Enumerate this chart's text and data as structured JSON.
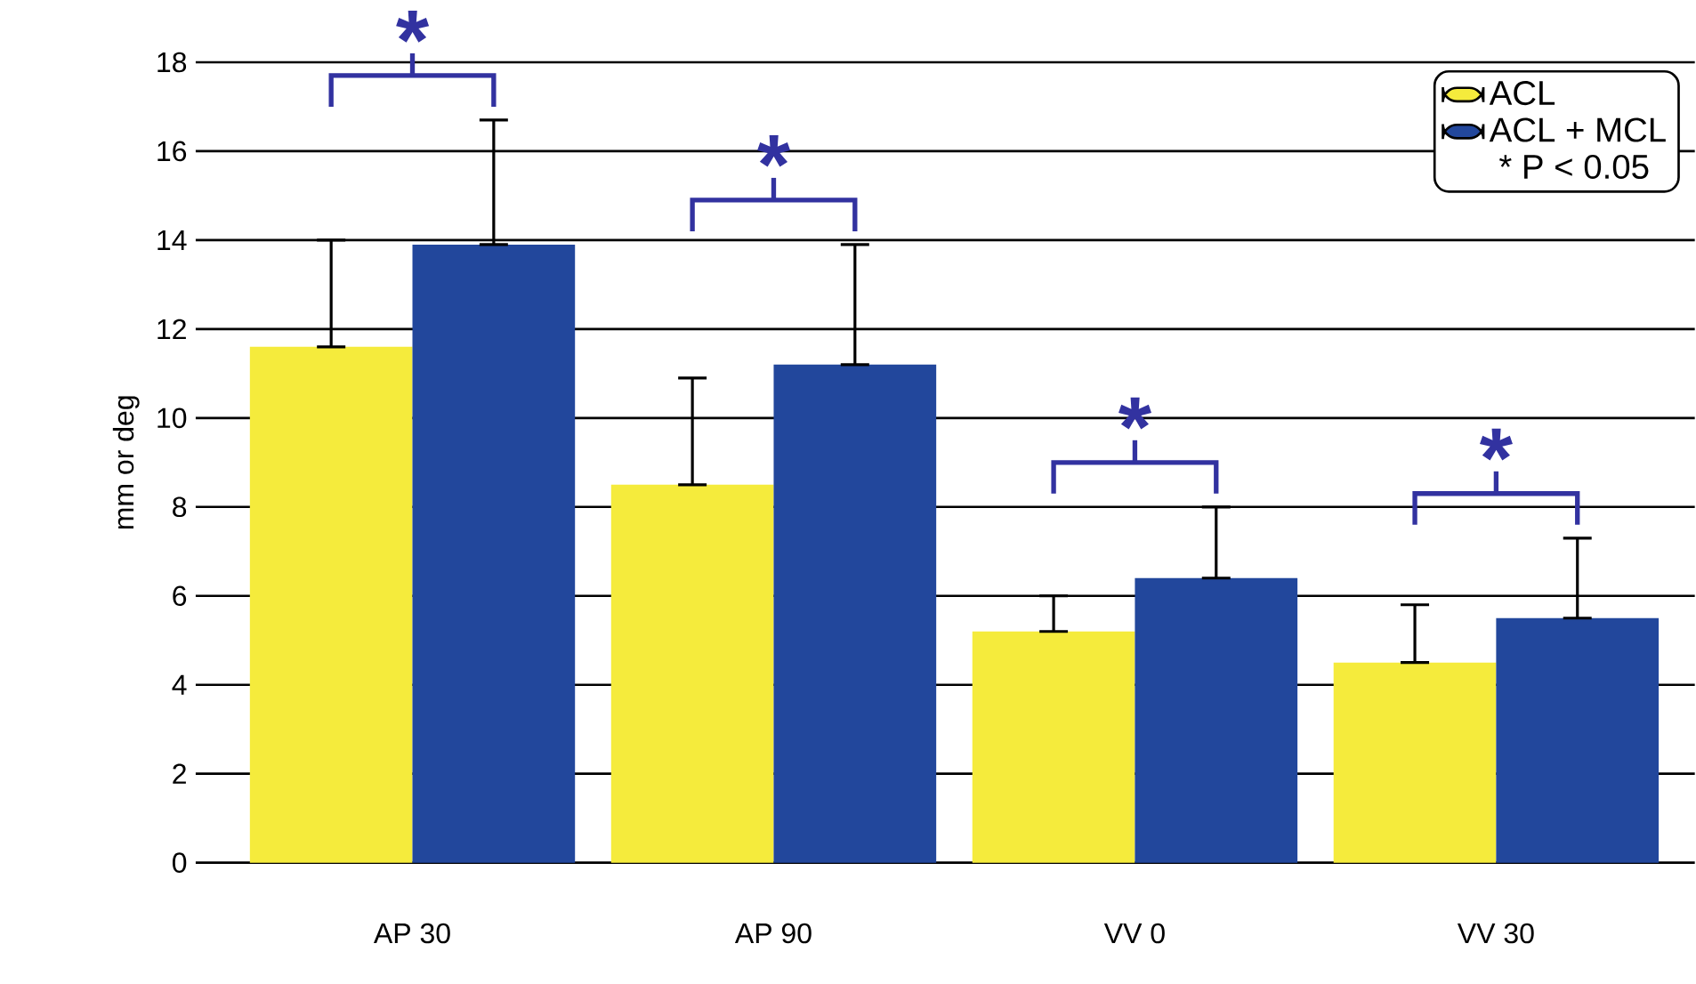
{
  "chart_data": {
    "type": "bar",
    "ylabel": "mm or deg",
    "categories": [
      "AP 30",
      "AP 90",
      "VV 0",
      "VV 30"
    ],
    "series": [
      {
        "name": "ACL",
        "color": "#f5eb3c",
        "values": [
          11.6,
          8.5,
          5.2,
          4.5
        ],
        "errors": [
          [
            11.6,
            14.0
          ],
          [
            8.5,
            10.9
          ],
          [
            5.2,
            6.0
          ],
          [
            4.5,
            5.8
          ]
        ]
      },
      {
        "name": "ACL + MCL",
        "color": "#22479c",
        "values": [
          13.9,
          11.2,
          6.4,
          5.5
        ],
        "errors": [
          [
            13.9,
            16.7
          ],
          [
            11.2,
            13.9
          ],
          [
            6.4,
            8.0
          ],
          [
            5.5,
            7.3
          ]
        ]
      }
    ],
    "ylim": [
      0,
      18
    ],
    "yticks": [
      0,
      2,
      4,
      6,
      8,
      10,
      12,
      14,
      16,
      18
    ],
    "grid": "y",
    "legend": "top right",
    "annotations": [
      "*",
      "*",
      "*",
      "*",
      "* P < 0.05"
    ]
  }
}
